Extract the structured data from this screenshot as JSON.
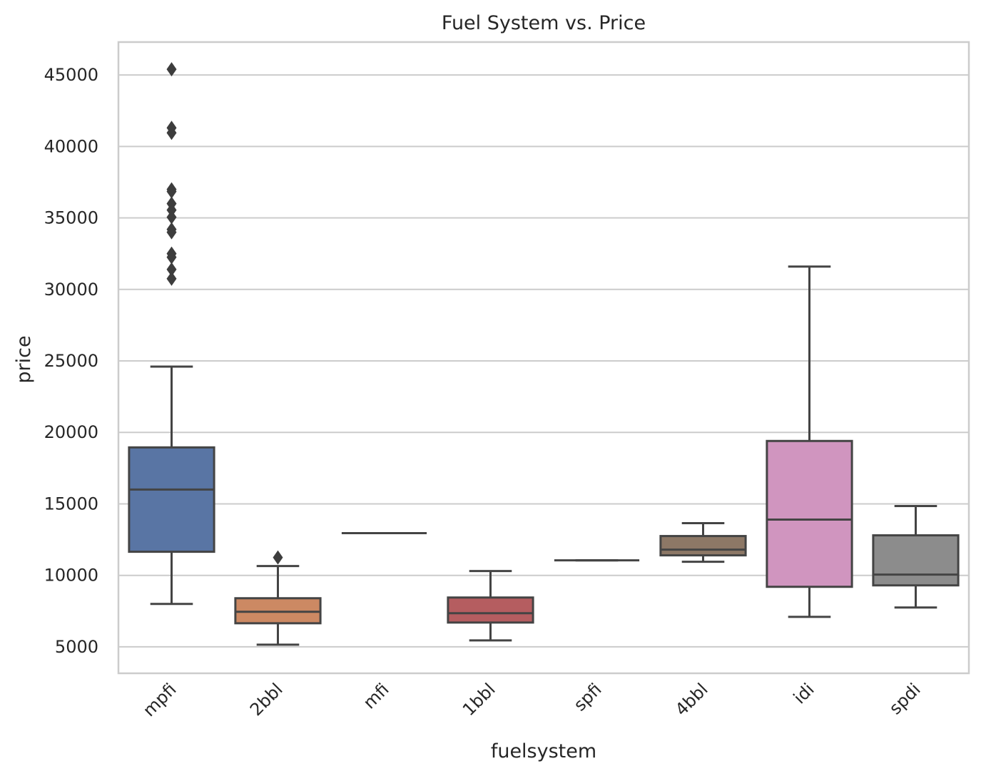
{
  "chart_data": {
    "type": "box",
    "title": "Fuel System vs. Price",
    "xlabel": "fuelsystem",
    "ylabel": "price",
    "ylim": [
      3150,
      47300
    ],
    "yticks": [
      5000,
      10000,
      15000,
      20000,
      25000,
      30000,
      35000,
      40000,
      45000
    ],
    "grid": "horizontal",
    "categories": [
      "mpfi",
      "2bbl",
      "mfi",
      "1bbl",
      "spfi",
      "4bbl",
      "idi",
      "spdi"
    ],
    "boxes": [
      {
        "category": "mpfi",
        "color": "#5975a4",
        "whisker_low": 8000,
        "q1": 11650,
        "median": 16000,
        "q3": 18950,
        "whisker_high": 24600,
        "outliers": [
          45400,
          41300,
          40950,
          37000,
          36850,
          36000,
          35550,
          35050,
          34200,
          34000,
          32500,
          32250,
          31400,
          30750
        ]
      },
      {
        "category": "2bbl",
        "color": "#cc8963",
        "whisker_low": 5150,
        "q1": 6650,
        "median": 7450,
        "q3": 8400,
        "whisker_high": 10650,
        "outliers": [
          11250
        ]
      },
      {
        "category": "mfi",
        "color": "#5f9e6e",
        "whisker_low": 12950,
        "q1": 12950,
        "median": 12950,
        "q3": 12950,
        "whisker_high": 12950,
        "outliers": []
      },
      {
        "category": "1bbl",
        "color": "#b55d60",
        "whisker_low": 5450,
        "q1": 6700,
        "median": 7350,
        "q3": 8450,
        "whisker_high": 10300,
        "outliers": []
      },
      {
        "category": "spfi",
        "color": "#857aab",
        "whisker_low": 11050,
        "q1": 11050,
        "median": 11050,
        "q3": 11050,
        "whisker_high": 11050,
        "outliers": []
      },
      {
        "category": "4bbl",
        "color": "#8d7866",
        "whisker_low": 10950,
        "q1": 11400,
        "median": 11800,
        "q3": 12750,
        "whisker_high": 13650,
        "outliers": []
      },
      {
        "category": "idi",
        "color": "#d095bf",
        "whisker_low": 7100,
        "q1": 9200,
        "median": 13900,
        "q3": 19400,
        "whisker_high": 31600,
        "outliers": []
      },
      {
        "category": "spdi",
        "color": "#8c8c8c",
        "whisker_low": 7750,
        "q1": 9300,
        "median": 10050,
        "q3": 12800,
        "whisker_high": 14850,
        "outliers": []
      }
    ]
  }
}
